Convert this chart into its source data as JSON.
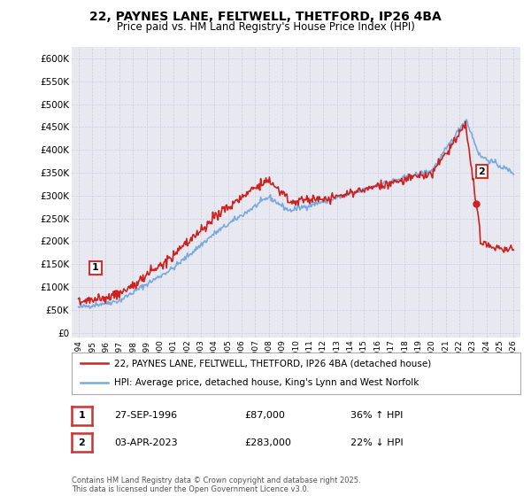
{
  "title1": "22, PAYNES LANE, FELTWELL, THETFORD, IP26 4BA",
  "title2": "Price paid vs. HM Land Registry's House Price Index (HPI)",
  "bg_color": "#ffffff",
  "plot_bg_color": "#e8e8f0",
  "legend_line1": "22, PAYNES LANE, FELTWELL, THETFORD, IP26 4BA (detached house)",
  "legend_line2": "HPI: Average price, detached house, King's Lynn and West Norfolk",
  "annotation1_date": "27-SEP-1996",
  "annotation1_price": "£87,000",
  "annotation1_hpi": "36% ↑ HPI",
  "annotation2_date": "03-APR-2023",
  "annotation2_price": "£283,000",
  "annotation2_hpi": "22% ↓ HPI",
  "footer": "Contains HM Land Registry data © Crown copyright and database right 2025.\nThis data is licensed under the Open Government Licence v3.0.",
  "yticks": [
    0,
    50000,
    100000,
    150000,
    200000,
    250000,
    300000,
    350000,
    400000,
    450000,
    500000,
    550000,
    600000
  ],
  "ytick_labels": [
    "£0",
    "£50K",
    "£100K",
    "£150K",
    "£200K",
    "£250K",
    "£300K",
    "£350K",
    "£400K",
    "£450K",
    "£500K",
    "£550K",
    "£600K"
  ],
  "ylim": [
    -10000,
    625000
  ],
  "xlim": [
    1993.5,
    2026.5
  ],
  "sale1_x": 1996.75,
  "sale1_y": 87000,
  "sale2_x": 2023.25,
  "sale2_y": 283000,
  "red_color": "#cc2222",
  "blue_color": "#7aaadd",
  "grid_color": "#ccccdd",
  "box_color": "#cc3333"
}
